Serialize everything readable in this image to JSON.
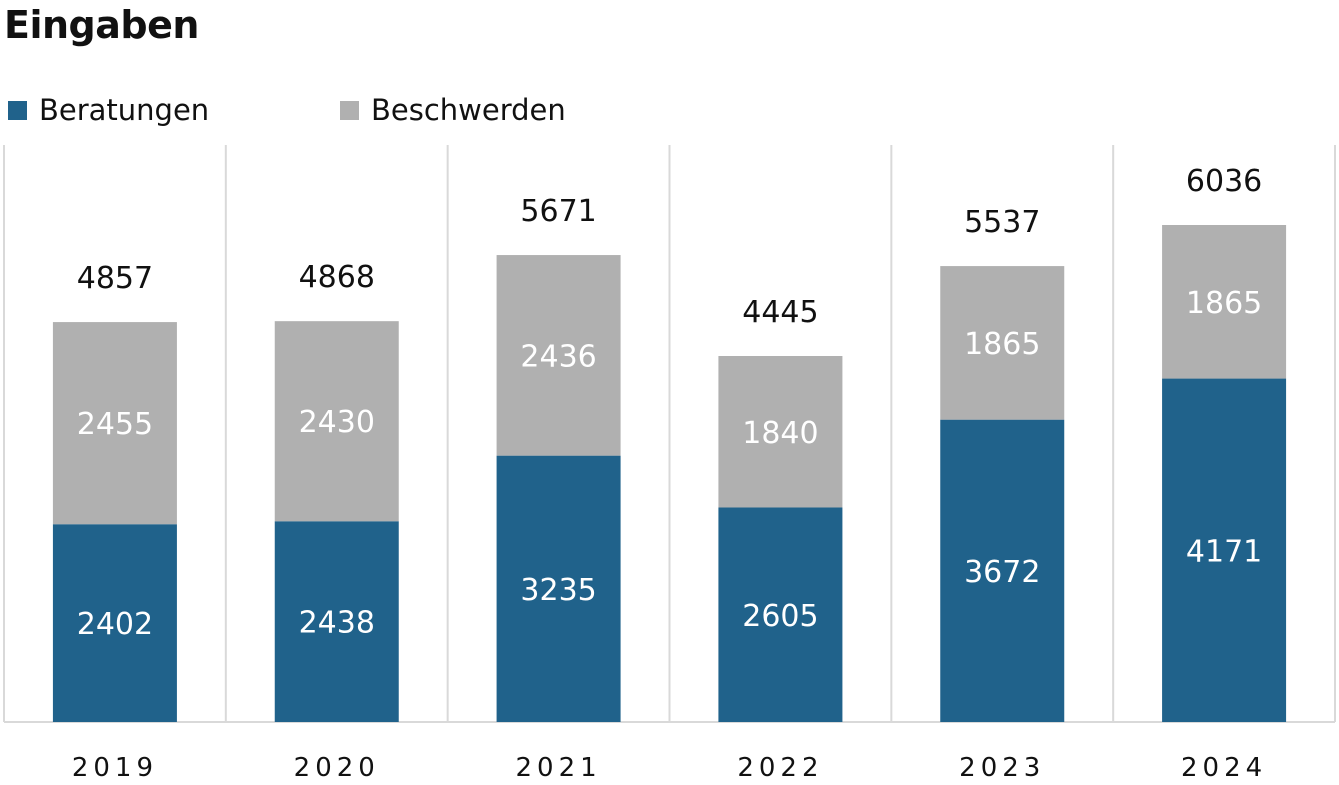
{
  "chart_data": {
    "type": "bar",
    "stacked": true,
    "title": "Eingaben",
    "categories": [
      "2019",
      "2020",
      "2021",
      "2022",
      "2023",
      "2024"
    ],
    "series": [
      {
        "name": "Beratungen",
        "color": "#20628b",
        "values": [
          2402,
          2438,
          3235,
          2605,
          3672,
          4171
        ]
      },
      {
        "name": "Beschwerden",
        "color": "#b0b0b0",
        "values": [
          2455,
          2430,
          2436,
          1840,
          1865,
          1865
        ]
      }
    ],
    "totals": [
      4857,
      4868,
      5671,
      4445,
      5537,
      6036
    ],
    "legend": "top-left",
    "grid": false,
    "ylim": [
      0,
      7000
    ]
  },
  "colors": {
    "separator": "#d9d9d9",
    "bar_label": "#ffffff",
    "total_label": "#111111",
    "axis_label": "#111111"
  }
}
